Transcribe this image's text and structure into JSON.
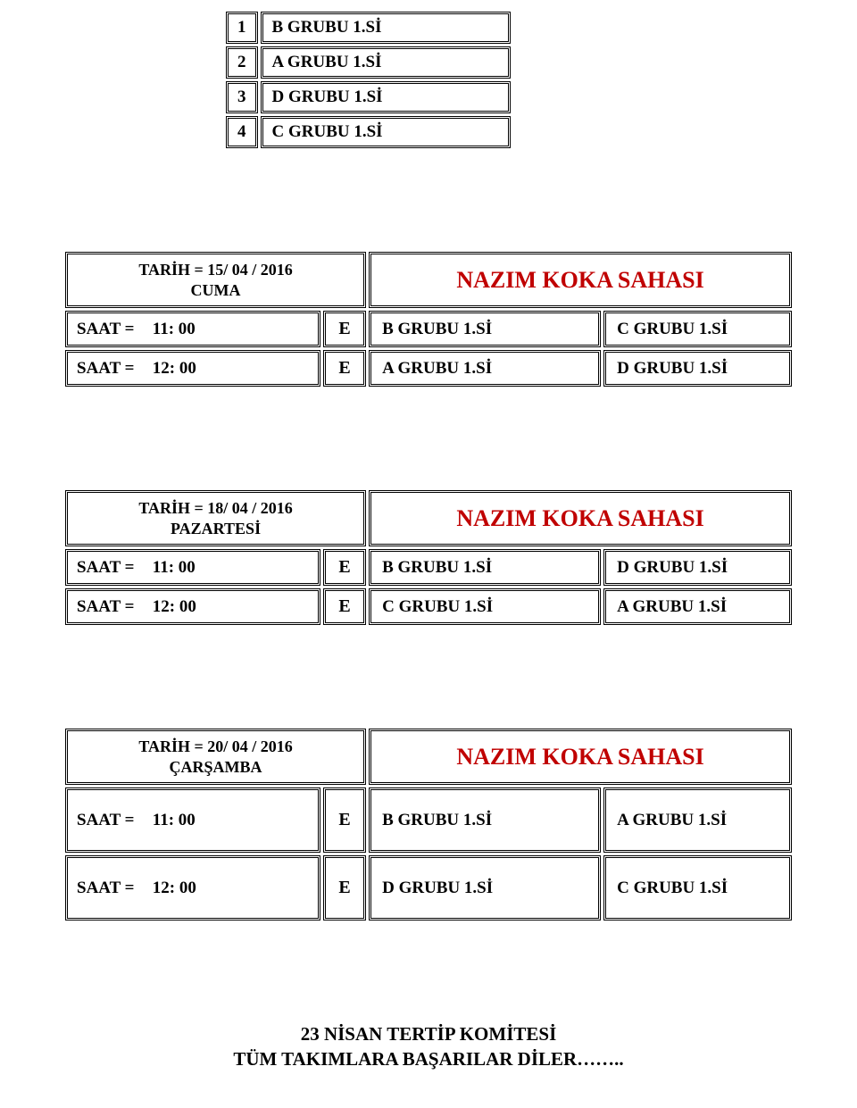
{
  "colors": {
    "accent": "#c00000",
    "text": "#000000",
    "background": "#ffffff",
    "border": "#000000"
  },
  "seed_table": {
    "rows": [
      {
        "num": "1",
        "label": "B GRUBU 1.Sİ"
      },
      {
        "num": "2",
        "label": "A GRUBU 1.Sİ"
      },
      {
        "num": "3",
        "label": "D GRUBU 1.Sİ"
      },
      {
        "num": "4",
        "label": "C GRUBU 1.Sİ"
      }
    ]
  },
  "venue_title": "NAZIM KOKA SAHASI",
  "saat_label": "SAAT =",
  "e_label": "E",
  "schedules": [
    {
      "date_line": "TARİH = 15/ 04 / 2016",
      "day_line": "CUMA",
      "rows": [
        {
          "time": "11: 00",
          "home": "B GRUBU 1.Sİ",
          "away": "C GRUBU 1.Sİ"
        },
        {
          "time": "12: 00",
          "home": "A GRUBU 1.Sİ",
          "away": "D GRUBU 1.Sİ"
        }
      ]
    },
    {
      "date_line": "TARİH = 18/ 04 / 2016",
      "day_line": "PAZARTESİ",
      "rows": [
        {
          "time": "11: 00",
          "home": "B GRUBU 1.Sİ",
          "away": "D GRUBU 1.Sİ"
        },
        {
          "time": "12: 00",
          "home": "C GRUBU 1.Sİ",
          "away": "A GRUBU 1.Sİ"
        }
      ]
    },
    {
      "date_line": "TARİH = 20/ 04 / 2016",
      "day_line": "ÇARŞAMBA",
      "rows": [
        {
          "time": "11: 00",
          "home": "B GRUBU 1.Sİ",
          "away": "A GRUBU 1.Sİ"
        },
        {
          "time": "12: 00",
          "home": "D GRUBU 1.Sİ",
          "away": "C GRUBU 1.Sİ"
        }
      ]
    }
  ],
  "footer": {
    "line1": "23 NİSAN TERTİP KOMİTESİ",
    "line2": "TÜM TAKIMLARA BAŞARILAR DİLER…….."
  }
}
